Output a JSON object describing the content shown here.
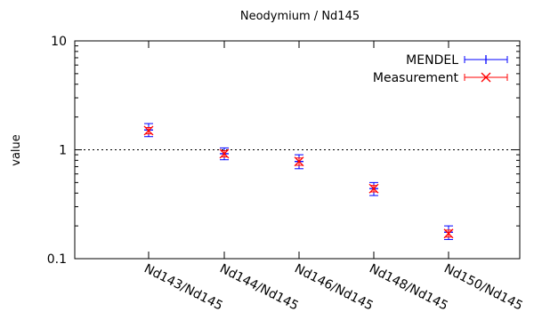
{
  "chart_data": {
    "type": "scatter",
    "title": "Neodymium / Nd145",
    "ylabel": "value",
    "xlabel": "",
    "yscale": "log",
    "ylim": [
      0.1,
      10
    ],
    "yticks": [
      {
        "value": 0.1,
        "label": "0.1"
      },
      {
        "value": 1,
        "label": "1"
      },
      {
        "value": 10,
        "label": "10"
      }
    ],
    "categories": [
      "Nd143/Nd145",
      "Nd144/Nd145",
      "Nd146/Nd145",
      "Nd148/Nd145",
      "Nd150/Nd145"
    ],
    "reference_line": 1,
    "legend_position": "top-right",
    "series": [
      {
        "name": "MENDEL",
        "color": "#0000ff",
        "marker": "plus",
        "values": [
          1.52,
          0.92,
          0.78,
          0.44,
          0.175
        ],
        "err_low": [
          1.32,
          0.81,
          0.67,
          0.38,
          0.15
        ],
        "err_high": [
          1.74,
          1.04,
          0.9,
          0.5,
          0.2
        ]
      },
      {
        "name": "Measurement",
        "color": "#ff0000",
        "marker": "cross",
        "values": [
          1.5,
          0.92,
          0.78,
          0.44,
          0.17
        ],
        "err_low": [
          1.4,
          0.86,
          0.72,
          0.41,
          0.158
        ],
        "err_high": [
          1.6,
          0.98,
          0.84,
          0.47,
          0.183
        ]
      }
    ]
  }
}
